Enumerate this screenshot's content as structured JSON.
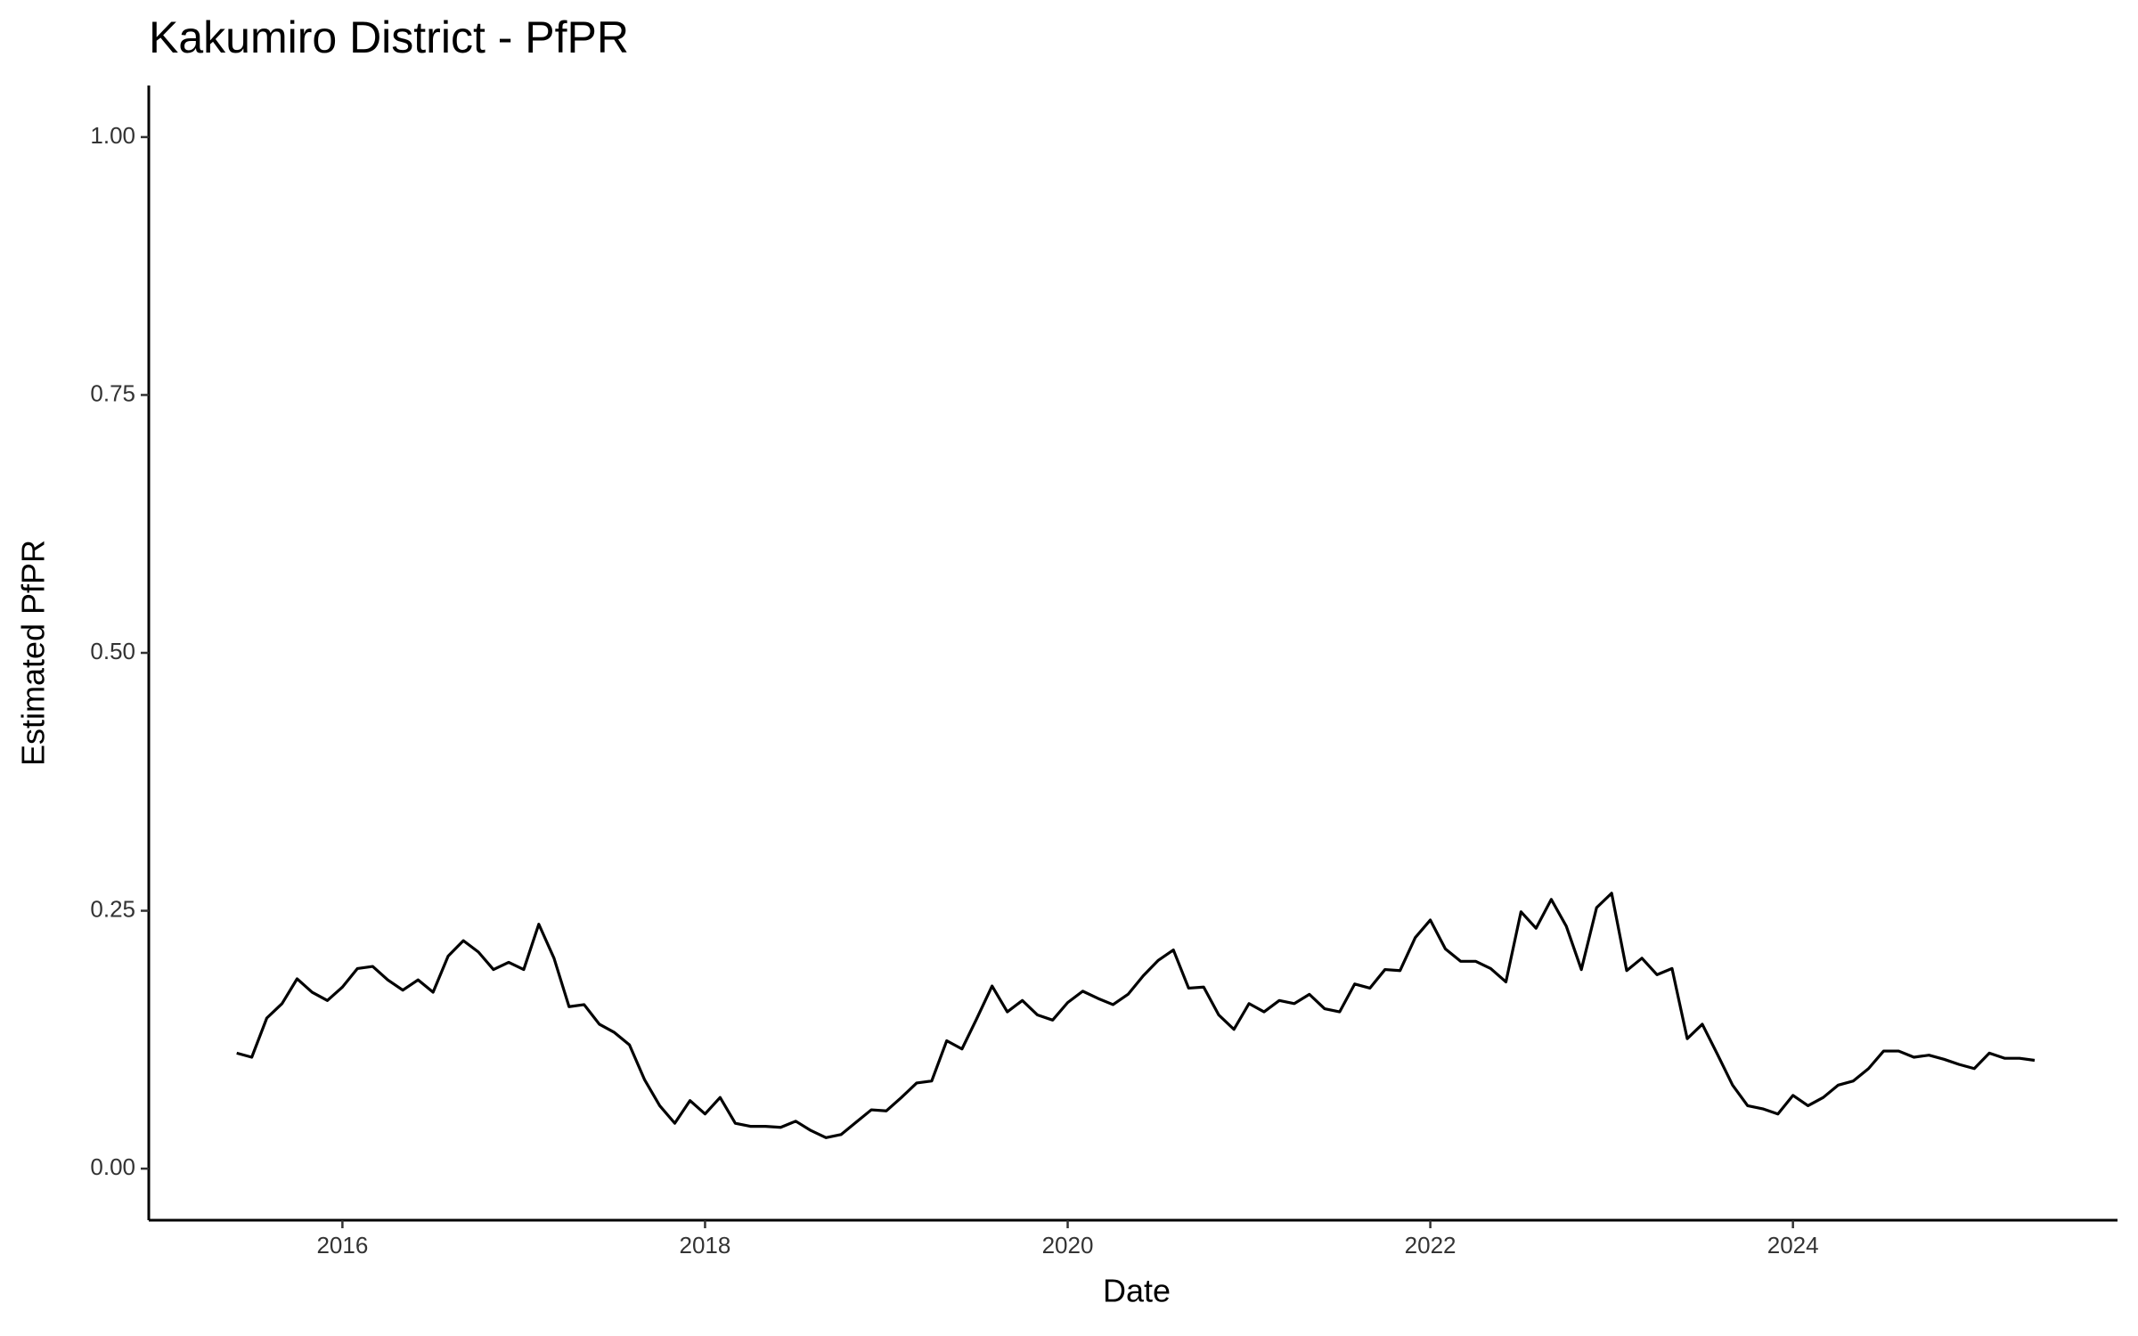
{
  "chart_data": {
    "type": "line",
    "title": "Kakumiro District - PfPR",
    "x_label": "Date",
    "y_label": "Estimated PfPR",
    "x": [
      2015.417,
      2015.5,
      2015.583,
      2015.667,
      2015.75,
      2015.833,
      2015.917,
      2016.0,
      2016.083,
      2016.167,
      2016.25,
      2016.333,
      2016.417,
      2016.5,
      2016.583,
      2016.667,
      2016.75,
      2016.833,
      2016.917,
      2017.0,
      2017.083,
      2017.167,
      2017.25,
      2017.333,
      2017.417,
      2017.5,
      2017.583,
      2017.667,
      2017.75,
      2017.833,
      2017.917,
      2018.0,
      2018.083,
      2018.167,
      2018.25,
      2018.333,
      2018.417,
      2018.5,
      2018.583,
      2018.667,
      2018.75,
      2018.833,
      2018.917,
      2019.0,
      2019.083,
      2019.167,
      2019.25,
      2019.333,
      2019.417,
      2019.5,
      2019.583,
      2019.667,
      2019.75,
      2019.833,
      2019.917,
      2020.0,
      2020.083,
      2020.167,
      2020.25,
      2020.333,
      2020.417,
      2020.5,
      2020.583,
      2020.667,
      2020.75,
      2020.833,
      2020.917,
      2021.0,
      2021.083,
      2021.167,
      2021.25,
      2021.333,
      2021.417,
      2021.5,
      2021.583,
      2021.667,
      2021.75,
      2021.833,
      2021.917,
      2022.0,
      2022.083,
      2022.167,
      2022.25,
      2022.333,
      2022.417,
      2022.5,
      2022.583,
      2022.667,
      2022.75,
      2022.833,
      2022.917,
      2023.0,
      2023.083,
      2023.167,
      2023.25,
      2023.333,
      2023.417,
      2023.5,
      2023.583,
      2023.667,
      2023.75,
      2023.833,
      2023.917,
      2024.0,
      2024.083,
      2024.167,
      2024.25,
      2024.333,
      2024.417,
      2024.5,
      2024.583,
      2024.667,
      2024.75,
      2024.833,
      2024.917,
      2025.0,
      2025.083,
      2025.167,
      2025.25,
      2025.333
    ],
    "values": [
      0.112,
      0.108,
      0.146,
      0.16,
      0.184,
      0.171,
      0.163,
      0.176,
      0.194,
      0.196,
      0.183,
      0.173,
      0.183,
      0.171,
      0.206,
      0.221,
      0.21,
      0.193,
      0.2,
      0.193,
      0.237,
      0.204,
      0.157,
      0.159,
      0.14,
      0.132,
      0.12,
      0.086,
      0.061,
      0.044,
      0.066,
      0.053,
      0.069,
      0.044,
      0.041,
      0.041,
      0.04,
      0.046,
      0.037,
      0.03,
      0.033,
      0.045,
      0.057,
      0.056,
      0.069,
      0.083,
      0.085,
      0.124,
      0.116,
      0.146,
      0.177,
      0.152,
      0.163,
      0.149,
      0.144,
      0.161,
      0.172,
      0.165,
      0.159,
      0.169,
      0.187,
      0.202,
      0.212,
      0.175,
      0.176,
      0.149,
      0.135,
      0.16,
      0.152,
      0.163,
      0.16,
      0.169,
      0.155,
      0.152,
      0.179,
      0.175,
      0.193,
      0.192,
      0.224,
      0.241,
      0.213,
      0.201,
      0.201,
      0.194,
      0.181,
      0.249,
      0.233,
      0.261,
      0.235,
      0.193,
      0.253,
      0.267,
      0.192,
      0.204,
      0.188,
      0.194,
      0.126,
      0.14,
      0.111,
      0.081,
      0.061,
      0.058,
      0.053,
      0.071,
      0.061,
      0.069,
      0.081,
      0.085,
      0.097,
      0.114,
      0.114,
      0.108,
      0.11,
      0.106,
      0.101,
      0.097,
      0.112,
      0.107,
      0.107,
      0.105
    ],
    "color": "#000000",
    "xlim": [
      2014.932,
      2025.79
    ],
    "xticks": [
      2016,
      2018,
      2020,
      2022,
      2024
    ],
    "ylim": [
      -0.05,
      1.05
    ],
    "yticks": [
      {
        "value": 0,
        "label": "0.00"
      },
      {
        "value": 0.25,
        "label": "0.25"
      },
      {
        "value": 0.5,
        "label": "0.50"
      },
      {
        "value": 0.75,
        "label": "0.75"
      },
      {
        "value": 1,
        "label": "1.00"
      }
    ]
  }
}
